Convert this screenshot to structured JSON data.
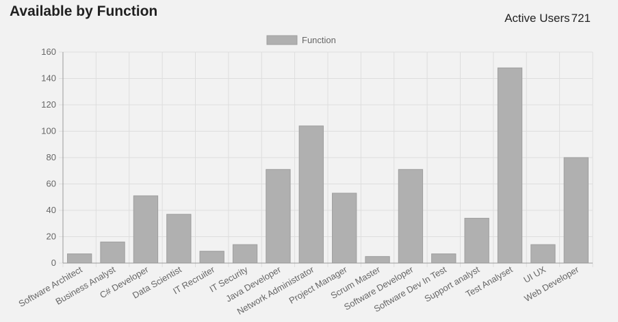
{
  "header": {
    "title": "Available by Function",
    "active_users_label": "Active Users",
    "active_users_count": "721"
  },
  "colors": {
    "bar_fill": "#b0b0b0",
    "bar_stroke": "#9e9e9e",
    "grid": "#dddddd",
    "axis": "#999999",
    "text": "#666666"
  },
  "chart_data": {
    "type": "bar",
    "title": "",
    "xlabel": "",
    "ylabel": "",
    "ylim": [
      0,
      160
    ],
    "yticks": [
      0,
      20,
      40,
      60,
      80,
      100,
      120,
      140,
      160
    ],
    "grid": true,
    "legend_position": "top-center",
    "categories": [
      "Software Architect",
      "Business Analyst",
      "C# Developer",
      "Data Scientist",
      "IT Recruiter",
      "IT Security",
      "Java Developer",
      "Network Administrator",
      "Project Manager",
      "Scrum Master",
      "Software Developer",
      "Software Dev In Test",
      "Support analyst",
      "Test Analyset",
      "UI UX",
      "Web Developer"
    ],
    "series": [
      {
        "name": "Function",
        "values": [
          7,
          16,
          51,
          37,
          9,
          14,
          71,
          104,
          53,
          5,
          71,
          7,
          34,
          148,
          14,
          80
        ]
      }
    ]
  }
}
